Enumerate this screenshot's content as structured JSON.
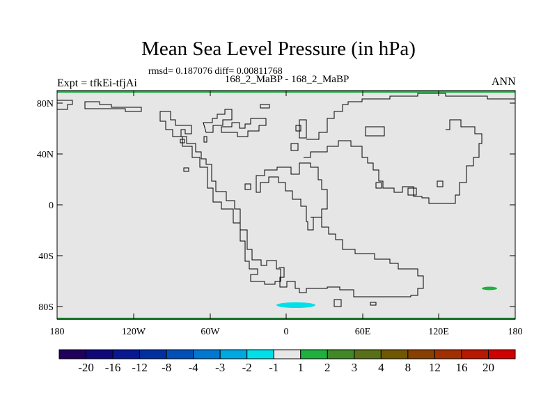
{
  "title": "Mean Sea Level Pressure (in hPa)",
  "stats": "rmsd= 0.187076 diff= 0.00811768",
  "subtitle": "168_2_MaBP - 168_2_MaBP",
  "experiment": "Expt = tfkEi-tfjAi",
  "season": "ANN",
  "y_ticks": [
    "80N",
    "40N",
    "0",
    "40S",
    "80S"
  ],
  "x_ticks": [
    "180",
    "120W",
    "60W",
    "0",
    "60E",
    "120E",
    "180"
  ],
  "colorbar": {
    "colors": [
      "#20005a",
      "#100878",
      "#081890",
      "#0030a0",
      "#0050b8",
      "#0078d0",
      "#00a8e0",
      "#00e0e8",
      "#e6e6e6",
      "#20b040",
      "#408828",
      "#587018",
      "#705800",
      "#884000",
      "#a03000",
      "#b81800",
      "#d00000"
    ],
    "labels": [
      "-20",
      "-16",
      "-12",
      "-8",
      "-4",
      "-3",
      "-2",
      "-1",
      "1",
      "2",
      "3",
      "4",
      "8",
      "12",
      "16",
      "20"
    ]
  },
  "colors": {
    "background": "#e6e6e6",
    "negative_anomaly": "#00e0e8",
    "positive_anomaly": "#20b040",
    "border_band": "#20b040"
  }
}
